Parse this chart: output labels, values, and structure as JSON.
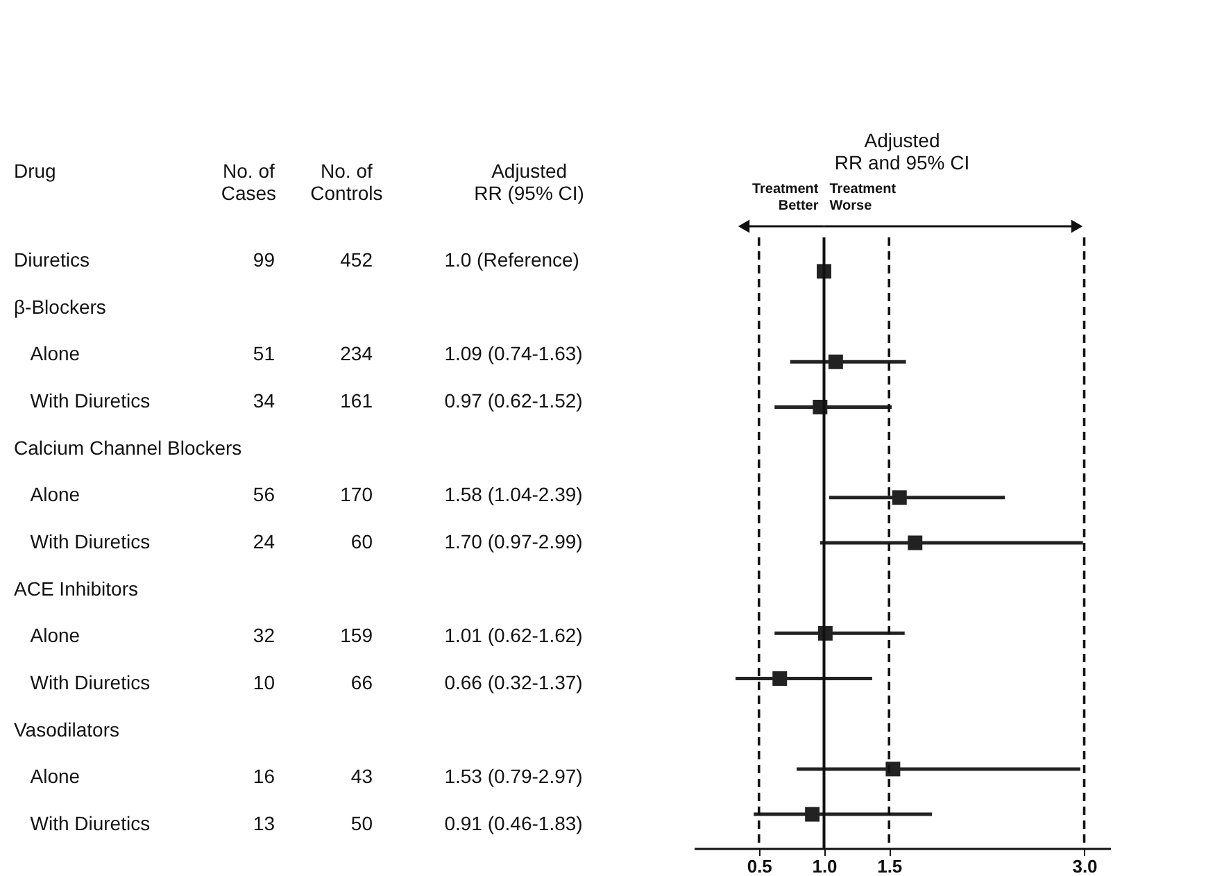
{
  "chart_data": [
    {
      "type": "other",
      "ylabel": "Drug",
      "categories": [
        "No. of\nCases",
        "No. of\nControls",
        "Adjusted\nRR (95% CI)"
      ],
      "y_categories": [
        "Diuretics",
        "β-Blockers",
        "Alone",
        "With Diuretics",
        "Calcium Channel Blockers",
        "Alone",
        "With Diuretics",
        "ACE Inhibitors",
        "Alone",
        "With Diuretics",
        "Vasodilators",
        "Alone",
        "With Diuretics"
      ],
      "cell_labels": [
        [
          "99",
          "452",
          "1.0 (Reference)"
        ],
        [
          null,
          null,
          null
        ],
        [
          "51",
          "234",
          "1.09 (0.74-1.63)"
        ],
        [
          "34",
          "161",
          "0.97 (0.62-1.52)"
        ],
        [
          null,
          null,
          null
        ],
        [
          "56",
          "170",
          "1.58 (1.04-2.39)"
        ],
        [
          "24",
          "60",
          "1.70 (0.97-2.99)"
        ],
        [
          null,
          null,
          null
        ],
        [
          "32",
          "159",
          "1.01 (0.62-1.62)"
        ],
        [
          "10",
          "66",
          "0.66 (0.32-1.37)"
        ],
        [
          null,
          null,
          null
        ],
        [
          "16",
          "43",
          "1.53 (0.79-2.97)"
        ],
        [
          "13",
          "50",
          "0.91 (0.46-1.83)"
        ]
      ]
    },
    {
      "type": "scatter",
      "title": "Adjusted\nRR and 95% CI",
      "orientation": "horizontal",
      "categories": [
        null,
        null,
        null,
        null,
        null,
        null,
        null,
        null,
        null,
        null,
        null,
        null,
        null
      ],
      "series": [
        {
          "color": "#222222",
          "values": [
            1.0,
            null,
            1.09,
            0.97,
            null,
            1.58,
            1.7,
            null,
            1.01,
            0.66,
            null,
            1.53,
            0.91
          ],
          "errors": [
            null,
            null,
            [
              0.74,
              1.63
            ],
            [
              0.62,
              1.52
            ],
            null,
            [
              1.04,
              2.39
            ],
            [
              0.97,
              2.99
            ],
            null,
            [
              0.62,
              1.62
            ],
            [
              0.32,
              1.37
            ],
            null,
            [
              0.79,
              2.97
            ],
            [
              0.46,
              1.83
            ]
          ]
        }
      ],
      "xlim": [
        0,
        3.2
      ],
      "xticks": [
        0.5,
        {
          "value": 1.0,
          "label": "1.0"
        },
        1.5,
        {
          "value": 3.0,
          "label": "3.0"
        }
      ],
      "ref_lines": [
        {
          "axis": "x",
          "value": 1.0,
          "line_style": "solid"
        },
        {
          "axis": "x",
          "value": 0.5,
          "line_style": "dashed"
        },
        {
          "axis": "x",
          "value": 1.5,
          "line_style": "dashed"
        },
        {
          "axis": "x",
          "value": 3.0,
          "line_style": "dashed"
        }
      ],
      "annotations": [
        "Treatment\nBetter",
        "Treatment\nWorse"
      ],
      "marker": "square",
      "grid": false,
      "legend": false,
      "tick_labels": "x"
    }
  ]
}
